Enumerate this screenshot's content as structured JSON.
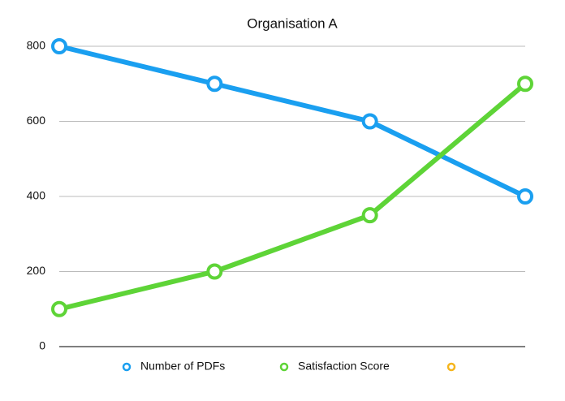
{
  "chart_data": {
    "type": "line",
    "title": "Organisation A",
    "categories": [
      null,
      null,
      null,
      null
    ],
    "series": [
      {
        "name": "Number of PDFs",
        "color": "#1a9ff0",
        "values": [
          800,
          700,
          600,
          400
        ]
      },
      {
        "name": "Satisfaction Score",
        "color": "#5ed437",
        "values": [
          100,
          200,
          350,
          700
        ]
      },
      {
        "name": null,
        "color": "#f5b51d",
        "values": [
          null,
          null,
          null,
          null
        ]
      }
    ],
    "ylim": [
      0,
      800
    ],
    "yticks": [
      0,
      200,
      400,
      600,
      800
    ],
    "grid": true,
    "legend": "bottom"
  }
}
